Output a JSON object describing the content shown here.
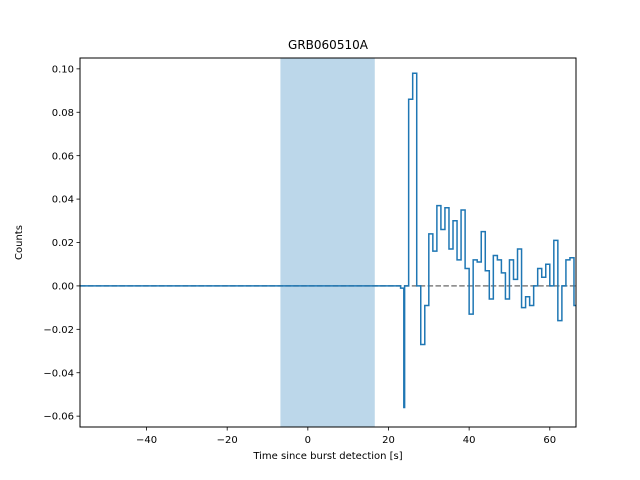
{
  "chart_data": {
    "type": "line",
    "title": "GRB060510A",
    "xlabel": "Time since burst detection [s]",
    "ylabel": "Counts",
    "xlim": [
      -56.5,
      66.5
    ],
    "ylim": [
      -0.065,
      0.105
    ],
    "xticks": [
      -40,
      -20,
      0,
      20,
      40,
      60
    ],
    "yticks": [
      -0.06,
      -0.04,
      -0.02,
      0.0,
      0.02,
      0.04,
      0.06,
      0.08,
      0.1
    ],
    "ytick_labels": [
      "−0.06",
      "−0.04",
      "−0.02",
      "0.00",
      "0.02",
      "0.04",
      "0.06",
      "0.08",
      "0.10"
    ],
    "xtick_labels": [
      "−40",
      "−20",
      "0",
      "20",
      "40",
      "60"
    ],
    "grid": false,
    "highlight_span": {
      "x": [
        -6.8,
        16.6
      ],
      "color": "#bcd7ea"
    },
    "zero_line": {
      "y": 0.0,
      "style": "dashed",
      "color": "#808080"
    },
    "series": [
      {
        "style": "step",
        "color": "#1f77b4",
        "x": [
          -56.5,
          23.0,
          23.8,
          24.0,
          25.0,
          26.0,
          27.0,
          28.0,
          29.0,
          30.0,
          31.0,
          32.0,
          33.0,
          34.0,
          35.0,
          36.0,
          37.0,
          38.0,
          39.0,
          40.0,
          41.0,
          42.0,
          43.0,
          44.0,
          45.0,
          46.0,
          47.0,
          48.0,
          49.0,
          50.0,
          51.0,
          52.0,
          53.0,
          54.0,
          55.0,
          56.0,
          57.0,
          58.0,
          59.0,
          60.0,
          61.0,
          62.0,
          63.0,
          64.0,
          65.0,
          66.0
        ],
        "y": [
          0.0,
          -0.001,
          -0.056,
          0.0,
          0.086,
          0.098,
          0.0,
          -0.027,
          -0.009,
          0.024,
          0.016,
          0.037,
          0.026,
          0.036,
          0.017,
          0.03,
          0.012,
          0.035,
          0.008,
          -0.013,
          0.012,
          0.011,
          0.025,
          0.007,
          -0.006,
          0.014,
          0.012,
          0.006,
          -0.006,
          0.012,
          0.003,
          0.017,
          -0.01,
          -0.005,
          -0.009,
          0.0,
          0.008,
          0.004,
          0.01,
          0.0,
          0.021,
          -0.016,
          0.0,
          0.012,
          0.013,
          -0.009
        ]
      }
    ]
  }
}
